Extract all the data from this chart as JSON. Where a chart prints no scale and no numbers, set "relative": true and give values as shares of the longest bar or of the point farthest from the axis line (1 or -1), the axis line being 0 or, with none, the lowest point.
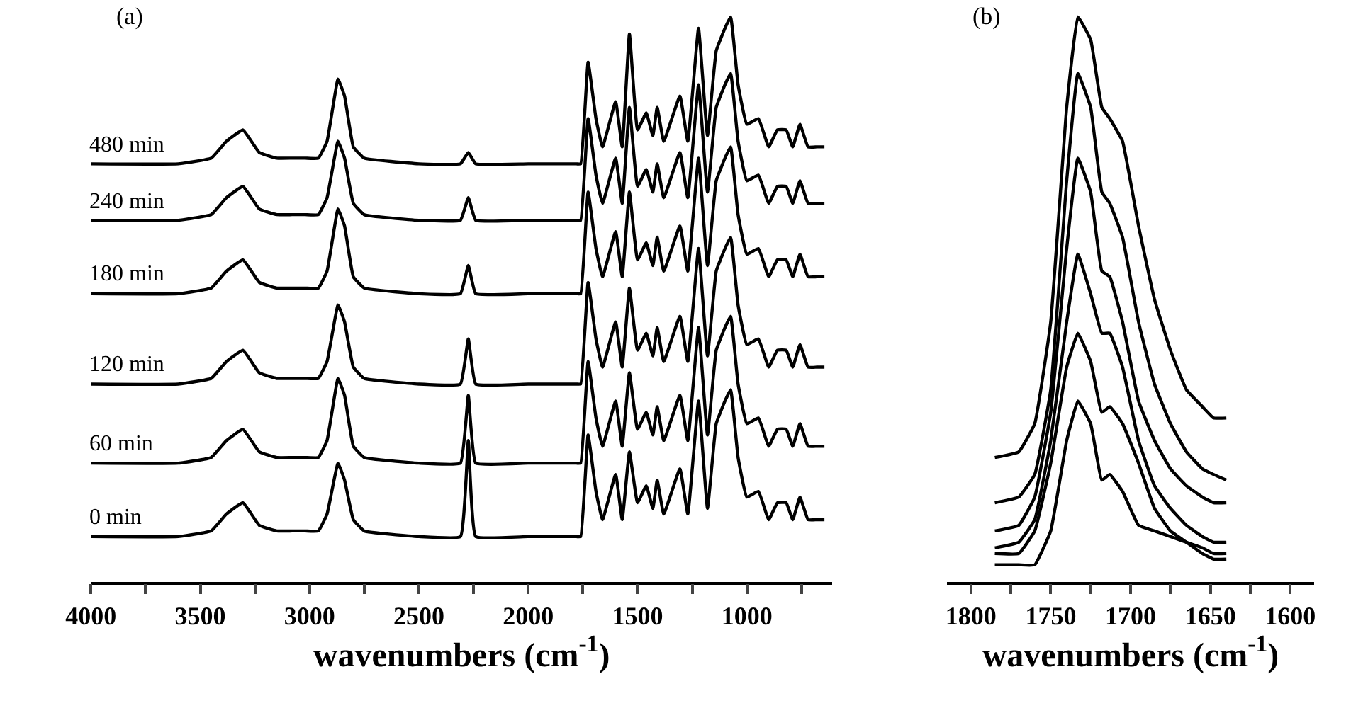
{
  "chart_data": [
    {
      "type": "line",
      "relative": true,
      "xlabel": "wavenumbers (cm$^{-1}$)",
      "annotations": [
        "(a)"
      ],
      "marker": "none",
      "line_style": "solid",
      "xlim": [
        4000,
        610
      ],
      "xticks": [
        4000,
        {
          "value": 3750,
          "label": null
        },
        3500,
        {
          "value": 3250,
          "label": null
        },
        3000,
        {
          "value": 2750,
          "label": null
        },
        2500,
        {
          "value": 2250,
          "label": null
        },
        2000,
        {
          "value": 1750,
          "label": null
        },
        1500,
        {
          "value": 1250,
          "label": null
        },
        1000,
        {
          "value": 750,
          "label": null
        }
      ],
      "x": [
        4000,
        3600,
        3450,
        3380,
        3305,
        3230,
        3150,
        3080,
        3020,
        2960,
        2920,
        2870,
        2840,
        2800,
        2750,
        2500,
        2310,
        2274,
        2240,
        2000,
        1780,
        1760,
        1726,
        1690,
        1660,
        1600,
        1570,
        1537,
        1500,
        1460,
        1430,
        1410,
        1380,
        1306,
        1270,
        1221,
        1180,
        1140,
        1100,
        1074,
        1040,
        1000,
        947,
        900,
        860,
        820,
        790,
        757,
        720,
        680,
        645
      ],
      "series": [
        {
          "name": "0 min",
          "color": "#000000",
          "values": [
            0.08,
            0.08,
            0.09,
            0.12,
            0.14,
            0.1,
            0.09,
            0.09,
            0.09,
            0.09,
            0.12,
            0.21,
            0.18,
            0.11,
            0.09,
            0.08,
            0.08,
            0.25,
            0.08,
            0.08,
            0.08,
            0.08,
            0.26,
            0.16,
            0.11,
            0.19,
            0.11,
            0.23,
            0.14,
            0.17,
            0.13,
            0.18,
            0.12,
            0.2,
            0.12,
            0.32,
            0.13,
            0.28,
            0.32,
            0.34,
            0.22,
            0.15,
            0.16,
            0.11,
            0.14,
            0.14,
            0.11,
            0.15,
            0.11,
            0.11,
            0.11
          ]
        },
        {
          "name": "60 min",
          "color": "#000000",
          "values": [
            0.21,
            0.21,
            0.22,
            0.25,
            0.27,
            0.23,
            0.22,
            0.22,
            0.22,
            0.22,
            0.25,
            0.36,
            0.33,
            0.24,
            0.22,
            0.21,
            0.21,
            0.33,
            0.21,
            0.21,
            0.21,
            0.21,
            0.39,
            0.29,
            0.24,
            0.32,
            0.24,
            0.37,
            0.27,
            0.3,
            0.26,
            0.31,
            0.25,
            0.33,
            0.25,
            0.45,
            0.26,
            0.41,
            0.45,
            0.47,
            0.35,
            0.28,
            0.29,
            0.24,
            0.27,
            0.27,
            0.24,
            0.28,
            0.24,
            0.24,
            0.24
          ]
        },
        {
          "name": "120 min",
          "color": "#000000",
          "values": [
            0.35,
            0.35,
            0.36,
            0.39,
            0.41,
            0.37,
            0.36,
            0.36,
            0.36,
            0.36,
            0.39,
            0.49,
            0.46,
            0.38,
            0.36,
            0.35,
            0.35,
            0.43,
            0.35,
            0.35,
            0.35,
            0.35,
            0.53,
            0.43,
            0.38,
            0.46,
            0.38,
            0.52,
            0.41,
            0.44,
            0.4,
            0.45,
            0.39,
            0.47,
            0.39,
            0.59,
            0.4,
            0.55,
            0.59,
            0.61,
            0.49,
            0.42,
            0.43,
            0.38,
            0.41,
            0.41,
            0.38,
            0.42,
            0.38,
            0.38,
            0.38
          ]
        },
        {
          "name": "180 min",
          "color": "#000000",
          "values": [
            0.51,
            0.51,
            0.52,
            0.55,
            0.57,
            0.53,
            0.52,
            0.52,
            0.52,
            0.52,
            0.55,
            0.66,
            0.63,
            0.54,
            0.52,
            0.51,
            0.51,
            0.56,
            0.51,
            0.51,
            0.51,
            0.51,
            0.69,
            0.59,
            0.54,
            0.62,
            0.54,
            0.69,
            0.57,
            0.6,
            0.56,
            0.61,
            0.55,
            0.63,
            0.55,
            0.75,
            0.56,
            0.71,
            0.75,
            0.77,
            0.65,
            0.58,
            0.59,
            0.54,
            0.57,
            0.57,
            0.54,
            0.58,
            0.54,
            0.54,
            0.54
          ]
        },
        {
          "name": "240 min",
          "color": "#000000",
          "values": [
            0.64,
            0.64,
            0.65,
            0.68,
            0.7,
            0.66,
            0.65,
            0.65,
            0.65,
            0.65,
            0.68,
            0.78,
            0.75,
            0.67,
            0.65,
            0.64,
            0.64,
            0.68,
            0.64,
            0.64,
            0.64,
            0.64,
            0.82,
            0.72,
            0.67,
            0.75,
            0.67,
            0.84,
            0.7,
            0.73,
            0.69,
            0.74,
            0.68,
            0.76,
            0.68,
            0.88,
            0.69,
            0.84,
            0.88,
            0.9,
            0.78,
            0.71,
            0.72,
            0.67,
            0.7,
            0.7,
            0.67,
            0.71,
            0.67,
            0.67,
            0.67
          ]
        },
        {
          "name": "480 min",
          "color": "#000000",
          "values": [
            0.74,
            0.74,
            0.75,
            0.78,
            0.8,
            0.76,
            0.75,
            0.75,
            0.75,
            0.75,
            0.78,
            0.89,
            0.86,
            0.77,
            0.75,
            0.74,
            0.74,
            0.76,
            0.74,
            0.74,
            0.74,
            0.74,
            0.92,
            0.82,
            0.77,
            0.85,
            0.77,
            0.97,
            0.8,
            0.83,
            0.79,
            0.84,
            0.78,
            0.86,
            0.78,
            0.98,
            0.79,
            0.94,
            0.98,
            1.0,
            0.88,
            0.81,
            0.82,
            0.77,
            0.8,
            0.8,
            0.77,
            0.81,
            0.77,
            0.77,
            0.77
          ]
        }
      ]
    },
    {
      "type": "line",
      "relative": true,
      "xlabel": "wavenumbers (cm$^{-1}$)",
      "annotations": [
        "(b)"
      ],
      "marker": "none",
      "line_style": "solid",
      "xlim": [
        1815,
        1585
      ],
      "xticks": [
        1800,
        {
          "value": 1775,
          "label": null
        },
        1750,
        {
          "value": 1725,
          "label": null
        },
        1700,
        {
          "value": 1675,
          "label": null
        },
        1650,
        {
          "value": 1625,
          "label": null
        },
        1600
      ],
      "x": [
        1785,
        1770,
        1760,
        1750,
        1740,
        1733,
        1725,
        1718,
        1713,
        1705,
        1695,
        1685,
        1675,
        1665,
        1655,
        1648,
        1640
      ],
      "series": [
        {
          "color": "#000000",
          "values": [
            0.22,
            0.23,
            0.28,
            0.46,
            0.84,
            1.0,
            0.96,
            0.84,
            0.82,
            0.78,
            0.63,
            0.5,
            0.41,
            0.34,
            0.31,
            0.29,
            0.29
          ]
        },
        {
          "color": "#000000",
          "values": [
            0.14,
            0.15,
            0.19,
            0.34,
            0.71,
            0.9,
            0.84,
            0.69,
            0.67,
            0.61,
            0.46,
            0.35,
            0.28,
            0.23,
            0.2,
            0.19,
            0.18
          ]
        },
        {
          "color": "#000000",
          "values": [
            0.09,
            0.1,
            0.15,
            0.3,
            0.59,
            0.75,
            0.69,
            0.55,
            0.54,
            0.46,
            0.32,
            0.25,
            0.2,
            0.17,
            0.15,
            0.14,
            0.14
          ]
        },
        {
          "color": "#000000",
          "values": [
            0.06,
            0.07,
            0.11,
            0.25,
            0.46,
            0.58,
            0.51,
            0.44,
            0.44,
            0.38,
            0.25,
            0.17,
            0.13,
            0.1,
            0.08,
            0.07,
            0.07
          ]
        },
        {
          "color": "#000000",
          "values": [
            0.05,
            0.05,
            0.09,
            0.21,
            0.38,
            0.44,
            0.39,
            0.3,
            0.31,
            0.28,
            0.21,
            0.13,
            0.09,
            0.07,
            0.05,
            0.04,
            0.04
          ]
        },
        {
          "color": "#000000",
          "values": [
            0.03,
            0.03,
            0.03,
            0.09,
            0.25,
            0.32,
            0.28,
            0.18,
            0.19,
            0.16,
            0.1,
            0.09,
            0.08,
            0.07,
            0.06,
            0.05,
            0.05
          ]
        }
      ]
    }
  ]
}
